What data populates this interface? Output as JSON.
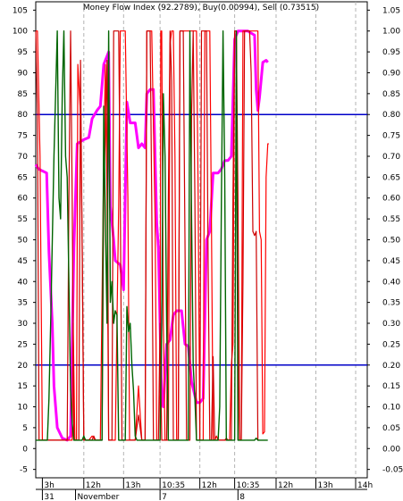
{
  "chart_data": {
    "type": "line",
    "title": "Money Flow Index (92.2789), Buy(0.00994), Sell (0.73515)",
    "left_axis": {
      "ylim": [
        -7,
        107
      ],
      "ticks": [
        "-5",
        "0",
        "5",
        "10",
        "15",
        "20",
        "25",
        "30",
        "35",
        "40",
        "45",
        "50",
        "55",
        "60",
        "65",
        "70",
        "75",
        "80",
        "85",
        "90",
        "95",
        "100",
        "105"
      ]
    },
    "right_axis": {
      "ylim": [
        -0.07,
        1.07
      ],
      "ticks": [
        "-0.05",
        "0.00",
        "0.05",
        "0.10",
        "0.15",
        "0.20",
        "0.25",
        "0.30",
        "0.35",
        "0.40",
        "0.45",
        "0.50",
        "0.55",
        "0.60",
        "0.65",
        "0.70",
        "0.75",
        "0.80",
        "0.85",
        "0.90",
        "0.95",
        "1.00",
        "1.05"
      ]
    },
    "x_range": [
      0,
      100
    ],
    "x_time_ticks": [
      {
        "x": 2.0,
        "label": "3h"
      },
      {
        "x": 14.5,
        "label": "12h"
      },
      {
        "x": 26.5,
        "label": "13h"
      },
      {
        "x": 37.5,
        "label": "10:35"
      },
      {
        "x": 49.5,
        "label": "12h"
      },
      {
        "x": 60.0,
        "label": "10:35"
      },
      {
        "x": 72.5,
        "label": "12h"
      },
      {
        "x": 84.5,
        "label": "13h"
      },
      {
        "x": 96.5,
        "label": "14h"
      }
    ],
    "x_date_labels": [
      {
        "x": 2.0,
        "label": "31"
      },
      {
        "x": 12.0,
        "label": "November"
      },
      {
        "x": 37.5,
        "label": "7"
      },
      {
        "x": 61.0,
        "label": "8"
      }
    ],
    "hlines": [
      {
        "y": 80,
        "color": "#0000c8"
      },
      {
        "y": 20,
        "color": "#0000c8"
      }
    ],
    "series": [
      {
        "color": "#ff00ff",
        "width": 3,
        "points": [
          [
            0,
            68
          ],
          [
            0.8,
            67
          ],
          [
            2,
            66.5
          ],
          [
            3.3,
            66
          ],
          [
            4,
            47
          ],
          [
            5,
            30
          ],
          [
            5.5,
            15
          ],
          [
            6.5,
            5
          ],
          [
            8,
            2.5
          ],
          [
            9.5,
            2
          ],
          [
            10.5,
            3
          ],
          [
            11.5,
            48
          ],
          [
            12.5,
            73
          ],
          [
            14.5,
            74
          ],
          [
            16,
            74.5
          ],
          [
            17,
            79
          ],
          [
            18.5,
            81
          ],
          [
            19.5,
            82
          ],
          [
            20.5,
            92
          ],
          [
            21.5,
            94
          ],
          [
            22,
            95
          ],
          [
            22.5,
            58
          ],
          [
            23.5,
            50
          ],
          [
            24,
            45
          ],
          [
            25.5,
            44
          ],
          [
            26.5,
            38
          ],
          [
            27.5,
            83
          ],
          [
            28.5,
            78
          ],
          [
            30,
            78
          ],
          [
            31,
            72
          ],
          [
            32,
            73
          ],
          [
            33,
            72
          ],
          [
            33.5,
            85
          ],
          [
            34.5,
            86
          ],
          [
            35.5,
            86
          ],
          [
            36.5,
            54
          ],
          [
            37,
            48
          ],
          [
            38,
            11
          ],
          [
            38.5,
            10
          ],
          [
            39.5,
            25
          ],
          [
            40.5,
            26
          ],
          [
            41.5,
            32
          ],
          [
            42.5,
            33
          ],
          [
            44,
            33
          ],
          [
            45,
            25
          ],
          [
            46,
            24.5
          ],
          [
            47,
            16
          ],
          [
            48.5,
            11
          ],
          [
            49.5,
            11
          ],
          [
            50.5,
            12
          ],
          [
            51.5,
            50
          ],
          [
            52.5,
            52
          ],
          [
            53.5,
            66
          ],
          [
            55,
            66
          ],
          [
            56,
            67
          ],
          [
            57,
            69
          ],
          [
            58,
            69
          ],
          [
            59,
            70
          ],
          [
            60,
            98
          ],
          [
            61,
            100
          ],
          [
            62.5,
            100
          ],
          [
            64,
            100
          ],
          [
            65,
            99.5
          ],
          [
            66,
            99
          ],
          [
            66.5,
            86
          ],
          [
            67,
            81
          ],
          [
            67.5,
            84
          ],
          [
            68.5,
            92.5
          ],
          [
            69.5,
            93
          ],
          [
            70,
            92.5
          ]
        ]
      },
      {
        "color": "#ff0000",
        "width": 1.2,
        "points": [
          [
            0,
            100
          ],
          [
            0.5,
            100
          ],
          [
            1.3,
            70
          ],
          [
            2,
            2
          ],
          [
            2.5,
            2
          ],
          [
            11,
            2
          ],
          [
            11.3,
            30
          ],
          [
            11.8,
            2
          ],
          [
            12.3,
            2
          ],
          [
            12.7,
            92
          ],
          [
            13.5,
            80
          ],
          [
            14,
            50
          ],
          [
            14.5,
            2
          ],
          [
            16,
            2
          ],
          [
            17,
            3
          ],
          [
            18,
            2
          ],
          [
            19.5,
            2
          ],
          [
            20.5,
            70
          ],
          [
            21,
            92
          ],
          [
            21.5,
            60
          ],
          [
            22,
            2
          ],
          [
            24,
            2
          ],
          [
            25,
            58
          ],
          [
            25.5,
            100
          ],
          [
            27,
            100
          ],
          [
            27.8,
            60
          ],
          [
            28.3,
            2
          ],
          [
            30,
            2
          ],
          [
            31,
            15
          ],
          [
            32,
            2
          ],
          [
            33,
            2
          ],
          [
            33.5,
            100
          ],
          [
            35,
            100
          ],
          [
            36,
            55
          ],
          [
            36.5,
            2
          ],
          [
            37.5,
            2
          ],
          [
            37.7,
            100
          ],
          [
            38,
            100
          ],
          [
            38.5,
            30
          ],
          [
            39,
            2
          ],
          [
            40,
            2
          ],
          [
            40.5,
            97
          ],
          [
            41,
            100
          ],
          [
            41.5,
            100
          ],
          [
            42,
            70
          ],
          [
            42.5,
            2
          ],
          [
            43,
            2
          ],
          [
            43.5,
            100
          ],
          [
            47,
            100
          ],
          [
            48.5,
            100
          ],
          [
            49,
            60
          ],
          [
            49.5,
            2
          ],
          [
            50.5,
            2
          ],
          [
            51,
            100
          ],
          [
            52.5,
            100
          ],
          [
            53,
            55
          ],
          [
            53.5,
            2
          ],
          [
            54,
            2
          ],
          [
            54.5,
            3
          ],
          [
            55,
            2
          ],
          [
            58.5,
            2
          ],
          [
            59,
            20
          ],
          [
            59.5,
            25
          ],
          [
            60,
            100
          ],
          [
            60.5,
            100
          ],
          [
            61,
            20
          ],
          [
            61.5,
            2
          ],
          [
            62,
            2
          ],
          [
            62.5,
            100
          ],
          [
            67,
            100
          ],
          [
            67.5,
            52
          ],
          [
            68,
            50
          ],
          [
            68.5,
            3.5
          ],
          [
            69,
            4
          ],
          [
            69.5,
            65
          ],
          [
            70,
            73
          ],
          [
            70.3,
            73
          ]
        ]
      },
      {
        "color": "#cc0000",
        "width": 1.2,
        "points": [
          [
            0,
            100
          ],
          [
            0.5,
            80
          ],
          [
            1,
            2
          ],
          [
            2,
            2
          ],
          [
            9.5,
            2
          ],
          [
            10,
            60
          ],
          [
            10.5,
            100
          ],
          [
            11,
            60
          ],
          [
            11.5,
            2
          ],
          [
            13,
            2
          ],
          [
            13.5,
            93
          ],
          [
            14,
            50
          ],
          [
            14.5,
            2
          ],
          [
            17,
            2
          ],
          [
            17.5,
            3
          ],
          [
            18,
            2
          ],
          [
            20,
            2
          ],
          [
            20.5,
            60
          ],
          [
            21.5,
            93
          ],
          [
            22,
            2
          ],
          [
            23,
            2
          ],
          [
            23.5,
            100
          ],
          [
            25,
            100
          ],
          [
            25.5,
            60
          ],
          [
            26,
            2
          ],
          [
            30,
            2
          ],
          [
            31,
            8
          ],
          [
            32,
            2
          ],
          [
            33,
            2
          ],
          [
            33.5,
            100
          ],
          [
            34.5,
            100
          ],
          [
            35,
            60
          ],
          [
            35.5,
            2
          ],
          [
            37,
            2
          ],
          [
            37.5,
            30
          ],
          [
            38,
            2
          ],
          [
            39.5,
            2
          ],
          [
            40,
            60
          ],
          [
            40.5,
            100
          ],
          [
            41,
            88
          ],
          [
            41.5,
            2
          ],
          [
            43,
            2
          ],
          [
            43.5,
            100
          ],
          [
            44.5,
            100
          ],
          [
            45,
            50
          ],
          [
            45.5,
            2
          ],
          [
            46.5,
            2
          ],
          [
            47,
            80
          ],
          [
            47.5,
            100
          ],
          [
            48,
            60
          ],
          [
            48.5,
            2
          ],
          [
            49.5,
            2
          ],
          [
            50,
            100
          ],
          [
            51.5,
            100
          ],
          [
            52,
            45
          ],
          [
            52.5,
            2
          ],
          [
            53,
            2
          ],
          [
            53.5,
            22
          ],
          [
            54,
            2
          ],
          [
            57,
            2
          ],
          [
            57.5,
            2.5
          ],
          [
            58,
            2
          ],
          [
            59,
            2
          ],
          [
            59.5,
            60
          ],
          [
            60,
            100
          ],
          [
            60.5,
            100
          ],
          [
            61,
            60
          ],
          [
            61.5,
            2
          ],
          [
            62,
            2
          ],
          [
            62.5,
            40
          ],
          [
            63,
            100
          ],
          [
            64.5,
            100
          ],
          [
            65,
            90
          ],
          [
            65.5,
            52
          ],
          [
            66,
            51
          ],
          [
            66.5,
            52
          ],
          [
            67,
            2
          ],
          [
            67.5,
            2
          ]
        ]
      },
      {
        "color": "#006400",
        "width": 1.4,
        "points": [
          [
            0,
            2
          ],
          [
            3.5,
            2
          ],
          [
            4,
            12
          ],
          [
            4.5,
            30
          ],
          [
            5.5,
            70
          ],
          [
            6.5,
            100
          ],
          [
            7,
            60
          ],
          [
            7.5,
            55
          ],
          [
            8,
            85
          ],
          [
            8.5,
            100
          ],
          [
            9,
            70
          ],
          [
            9.5,
            65
          ],
          [
            10,
            40
          ],
          [
            10.5,
            14
          ],
          [
            11,
            6
          ],
          [
            11.5,
            2
          ],
          [
            14,
            2
          ],
          [
            14.5,
            3
          ],
          [
            15,
            2
          ],
          [
            20,
            2
          ],
          [
            20.5,
            82
          ],
          [
            21,
            55
          ],
          [
            21.5,
            30
          ],
          [
            22,
            100
          ],
          [
            22.5,
            35
          ],
          [
            23,
            40
          ],
          [
            23.5,
            30
          ],
          [
            24,
            33
          ],
          [
            24.5,
            32
          ],
          [
            25,
            2
          ],
          [
            27,
            2
          ],
          [
            27.5,
            34
          ],
          [
            28,
            28
          ],
          [
            28.5,
            30
          ],
          [
            29,
            20
          ],
          [
            29.5,
            14
          ],
          [
            30,
            3
          ],
          [
            30.5,
            2
          ],
          [
            37.5,
            2
          ],
          [
            38,
            30
          ],
          [
            38.5,
            85
          ],
          [
            39,
            70
          ],
          [
            39.5,
            30
          ],
          [
            40,
            2
          ],
          [
            46,
            2
          ],
          [
            46.5,
            100
          ],
          [
            47,
            55
          ],
          [
            47.5,
            20
          ],
          [
            48,
            12
          ],
          [
            48.5,
            2
          ],
          [
            55,
            2
          ],
          [
            55.5,
            10
          ],
          [
            56,
            60
          ],
          [
            56.5,
            100
          ],
          [
            57,
            65
          ],
          [
            57.5,
            2
          ],
          [
            60,
            2
          ],
          [
            60.5,
            100
          ],
          [
            61,
            2
          ],
          [
            66,
            2
          ],
          [
            66.5,
            2.5
          ],
          [
            67,
            2
          ],
          [
            70,
            2
          ]
        ]
      }
    ]
  }
}
